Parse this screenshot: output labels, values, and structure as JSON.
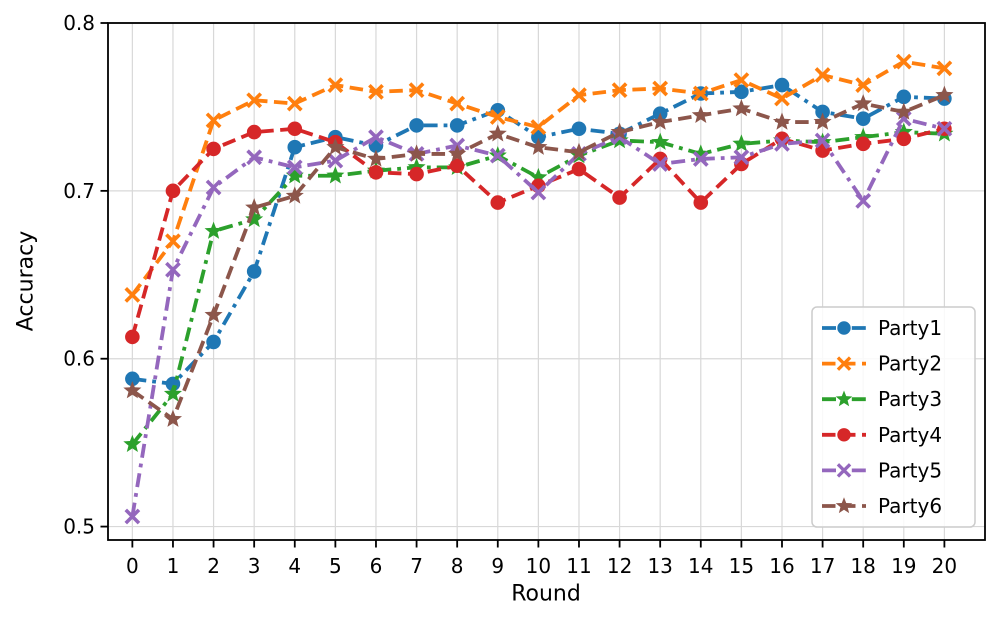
{
  "chart_data": {
    "type": "line",
    "title": "",
    "xlabel": "Round",
    "ylabel": "Accuracy",
    "x": [
      0,
      1,
      2,
      3,
      4,
      5,
      6,
      7,
      8,
      9,
      10,
      11,
      12,
      13,
      14,
      15,
      16,
      17,
      18,
      19,
      20
    ],
    "xticks": [
      0,
      1,
      2,
      3,
      4,
      5,
      6,
      7,
      8,
      9,
      10,
      11,
      12,
      13,
      14,
      15,
      16,
      17,
      18,
      19,
      20
    ],
    "yticks": [
      0.5,
      0.6,
      0.7,
      0.8
    ],
    "ytick_labels": [
      "0.5",
      "0.6",
      "0.7",
      "0.8"
    ],
    "xlim": [
      -0.6,
      21.0
    ],
    "ylim": [
      0.492,
      0.8
    ],
    "grid": true,
    "grid_color": "#d8d8d8",
    "background_color": "#ffffff",
    "legend_position": "lower right",
    "series": [
      {
        "name": "Party1",
        "color": "#1f77b4",
        "marker": "circle",
        "linestyle": "dashdot",
        "values": [
          0.588,
          0.585,
          0.61,
          0.652,
          0.726,
          0.732,
          0.727,
          0.739,
          0.739,
          0.748,
          0.732,
          0.737,
          0.734,
          0.746,
          0.758,
          0.759,
          0.763,
          0.747,
          0.743,
          0.756,
          0.755
        ]
      },
      {
        "name": "Party2",
        "color": "#ff7f0e",
        "marker": "x",
        "linestyle": "dashed",
        "values": [
          0.638,
          0.67,
          0.742,
          0.754,
          0.752,
          0.763,
          0.759,
          0.76,
          0.752,
          0.744,
          0.738,
          0.757,
          0.76,
          0.761,
          0.758,
          0.766,
          0.755,
          0.769,
          0.763,
          0.777,
          0.773
        ]
      },
      {
        "name": "Party3",
        "color": "#2ca02c",
        "marker": "star",
        "linestyle": "dashdot",
        "values": [
          0.549,
          0.579,
          0.676,
          0.683,
          0.709,
          0.709,
          0.712,
          0.714,
          0.714,
          0.721,
          0.708,
          0.721,
          0.73,
          0.729,
          0.722,
          0.728,
          0.73,
          0.729,
          0.732,
          0.735,
          0.734
        ]
      },
      {
        "name": "Party4",
        "color": "#d62728",
        "marker": "circle",
        "linestyle": "dashed",
        "values": [
          0.613,
          0.7,
          0.725,
          0.735,
          0.737,
          0.729,
          0.711,
          0.71,
          0.715,
          0.693,
          0.703,
          0.713,
          0.696,
          0.719,
          0.693,
          0.716,
          0.731,
          0.724,
          0.728,
          0.731,
          0.737
        ]
      },
      {
        "name": "Party5",
        "color": "#9467bd",
        "marker": "x",
        "linestyle": "dashdot",
        "values": [
          0.506,
          0.653,
          0.702,
          0.72,
          0.714,
          0.718,
          0.732,
          0.722,
          0.727,
          0.721,
          0.699,
          0.722,
          0.732,
          0.716,
          0.719,
          0.72,
          0.728,
          0.73,
          0.694,
          0.743,
          0.737
        ]
      },
      {
        "name": "Party6",
        "color": "#8c564b",
        "marker": "star",
        "linestyle": "dashed",
        "values": [
          0.581,
          0.564,
          0.626,
          0.69,
          0.697,
          0.726,
          0.719,
          0.722,
          0.722,
          0.734,
          0.726,
          0.723,
          0.735,
          0.741,
          0.745,
          0.749,
          0.741,
          0.741,
          0.752,
          0.747,
          0.757
        ]
      }
    ]
  }
}
